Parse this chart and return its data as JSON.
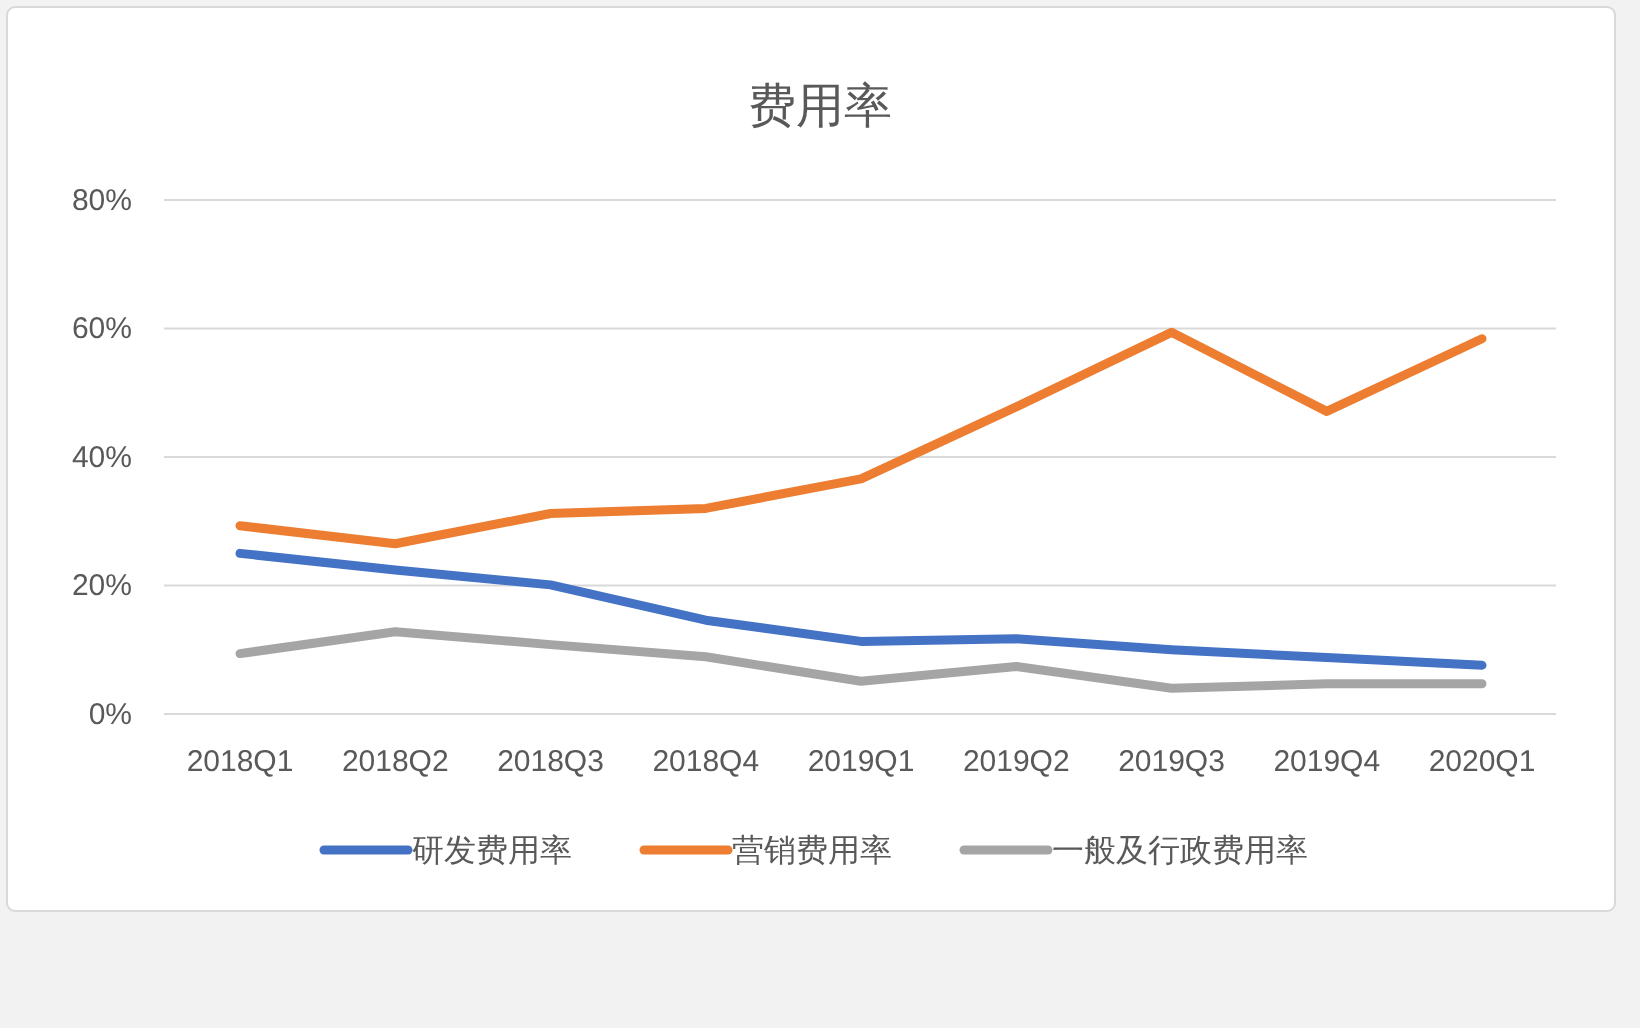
{
  "chart_data": {
    "type": "line",
    "title": "费用率",
    "categories": [
      "2018Q1",
      "2018Q2",
      "2018Q3",
      "2018Q4",
      "2019Q1",
      "2019Q2",
      "2019Q3",
      "2019Q4",
      "2020Q1"
    ],
    "series": [
      {
        "name": "研发费用率",
        "color": "#4472c4",
        "values": [
          25.0,
          22.4,
          20.1,
          14.6,
          11.3,
          11.7,
          10.0,
          8.8,
          7.6
        ]
      },
      {
        "name": "营销费用率",
        "color": "#ed7d31",
        "values": [
          29.3,
          26.5,
          31.2,
          32.0,
          36.6,
          47.8,
          59.4,
          47.1,
          58.4
        ]
      },
      {
        "name": "一般及行政费用率",
        "color": "#a5a5a5",
        "values": [
          9.4,
          12.8,
          10.8,
          8.9,
          5.1,
          7.4,
          4.0,
          4.7,
          4.7
        ]
      }
    ],
    "ylim": [
      0,
      80
    ],
    "yticks": [
      {
        "value": 0,
        "label": "0%"
      },
      {
        "value": 20,
        "label": "20%"
      },
      {
        "value": 40,
        "label": "40%"
      },
      {
        "value": 60,
        "label": "60%"
      },
      {
        "value": 80,
        "label": "80%"
      }
    ],
    "grid": "y",
    "legend": "bottom"
  }
}
